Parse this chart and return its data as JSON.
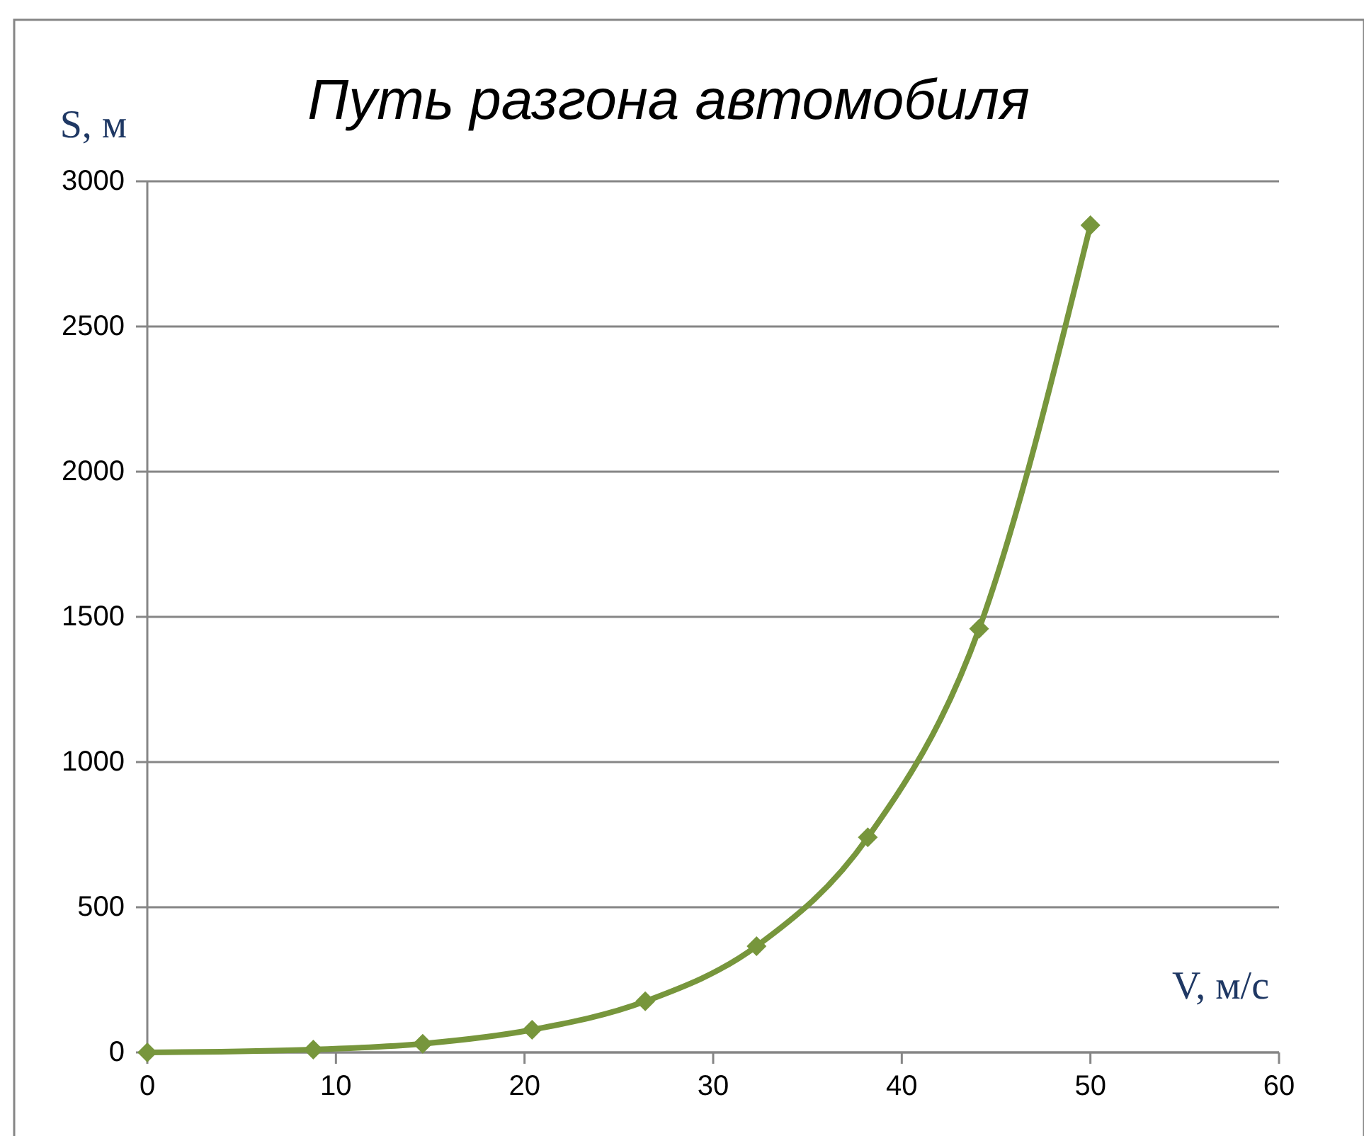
{
  "chart_data": {
    "type": "line",
    "title": "Путь разгона автомобиля",
    "xlabel": "V, м/с",
    "ylabel": "S, м",
    "x": [
      0,
      8.8,
      14.6,
      20.4,
      26.4,
      32.3,
      38.2,
      44.1,
      50
    ],
    "series": [
      {
        "color": "#77963c",
        "values": [
          0,
          10,
          30,
          78,
          176,
          366,
          741,
          1459,
          2849
        ]
      }
    ],
    "xlim": [
      0,
      60
    ],
    "xticks": [
      0,
      10,
      20,
      30,
      40,
      50,
      60
    ],
    "ylim": [
      0,
      3000
    ],
    "yticks": [
      0,
      500,
      1000,
      1500,
      2000,
      2500,
      3000
    ],
    "grid": "y",
    "marker": "diamond",
    "line_style": "solid"
  }
}
